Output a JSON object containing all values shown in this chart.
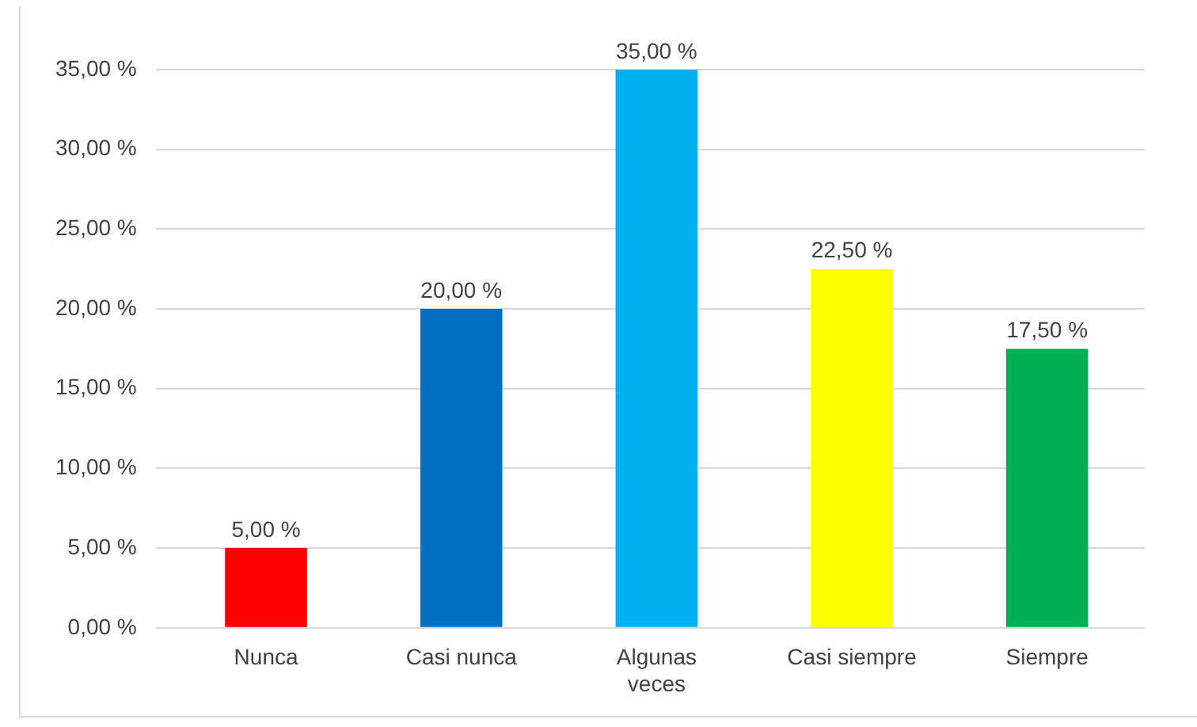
{
  "chart_data": {
    "type": "bar",
    "categories": [
      "Nunca",
      "Casi nunca",
      "Algunas veces",
      "Casi siempre",
      "Siempre"
    ],
    "values": [
      5,
      20,
      35,
      22.5,
      17.5
    ],
    "colors": [
      "#ff0000",
      "#0070c0",
      "#00b0f0",
      "#ffff00",
      "#00b050"
    ],
    "value_labels": [
      "5,00 %",
      "20,00 %",
      "35,00 %",
      "22,50 %",
      "17,50 %"
    ],
    "ylim": [
      0,
      35
    ],
    "yticks": [
      {
        "value": 0,
        "label": "0,00 %"
      },
      {
        "value": 5,
        "label": "5,00 %"
      },
      {
        "value": 10,
        "label": "10,00 %"
      },
      {
        "value": 15,
        "label": "15,00 %"
      },
      {
        "value": 20,
        "label": "20,00 %"
      },
      {
        "value": 25,
        "label": "25,00 %"
      },
      {
        "value": 30,
        "label": "30,00 %"
      },
      {
        "value": 35,
        "label": "35,00 %"
      }
    ],
    "grid": "y",
    "legend": false
  }
}
